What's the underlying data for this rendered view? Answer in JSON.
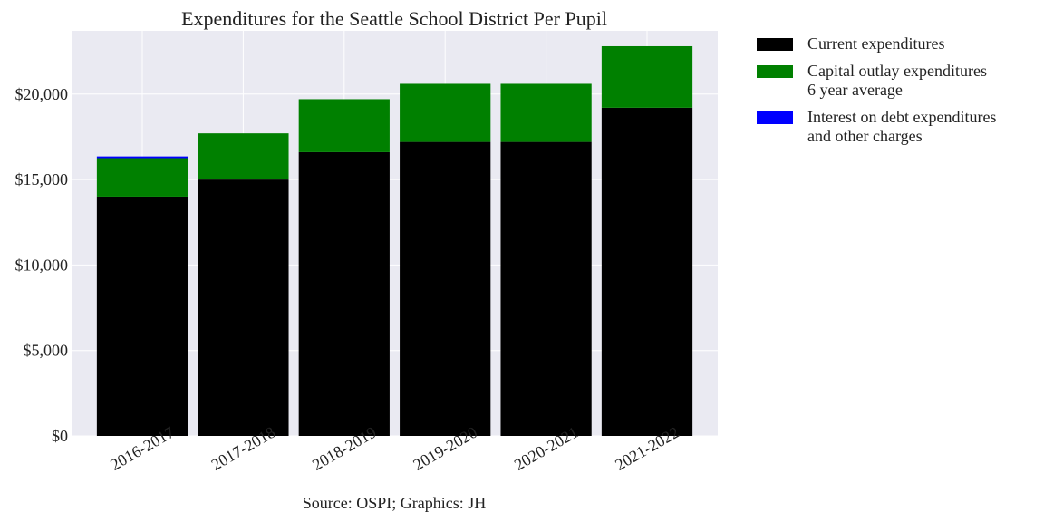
{
  "chart_data": {
    "type": "bar",
    "stacked": true,
    "title": "Expenditures for the Seattle School District Per Pupil",
    "xlabel": "Source: OSPI; Graphics: JH",
    "ylabel": "",
    "categories": [
      "2016-2017",
      "2017-2018",
      "2018-2019",
      "2019-2020",
      "2020-2021",
      "2021-2022"
    ],
    "ylim": [
      0,
      23700
    ],
    "yticks": [
      0,
      5000,
      10000,
      15000,
      20000
    ],
    "ytick_labels": [
      "$0",
      "$5,000",
      "$10,000",
      "$15,000",
      "$20,000"
    ],
    "grid": true,
    "legend_position": "outside-right",
    "series": [
      {
        "name": "Current expenditures",
        "color": "#000000",
        "values": [
          14000,
          15000,
          16600,
          17200,
          17200,
          19200
        ]
      },
      {
        "name": "Capital outlay expenditures\n6 year average",
        "color": "#008000",
        "values": [
          2250,
          2700,
          3100,
          3400,
          3400,
          3600
        ]
      },
      {
        "name": "Interest on debt expenditures\nand other charges",
        "color": "#0000ff",
        "values": [
          100,
          0,
          0,
          0,
          0,
          0
        ]
      }
    ]
  },
  "colors": {
    "plot_background": "#eaeaf2",
    "grid": "#ffffff"
  }
}
